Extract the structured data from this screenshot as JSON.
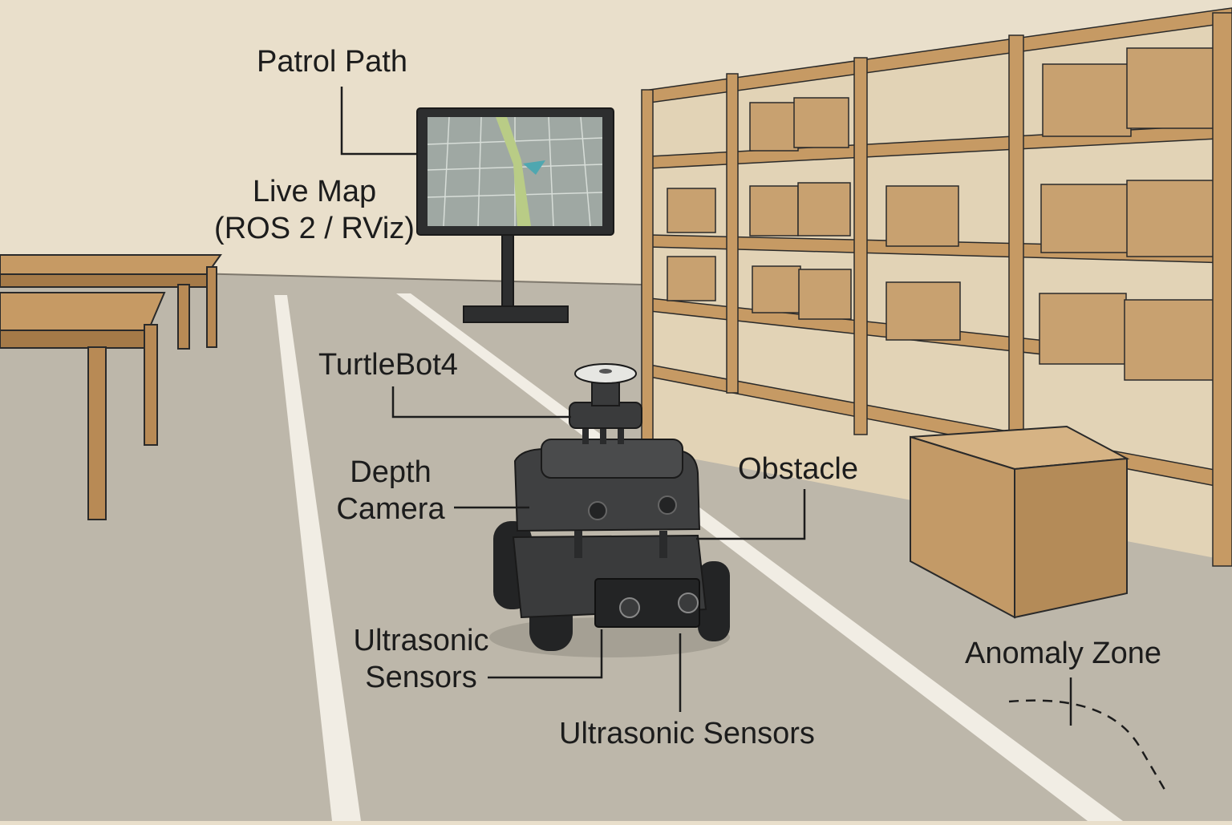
{
  "labels": {
    "patrol_path": "Patrol Path",
    "live_map_line1": "Live Map",
    "live_map_line2": "(ROS 2 / RViz)",
    "turtlebot": "TurtleBot4",
    "depth_line1": "Depth",
    "depth_line2": "Camera",
    "obstacle": "Obstacle",
    "ultrasonic_left_line1": "Ultrasonic",
    "ultrasonic_left_line2": "Sensors",
    "ultrasonic_bottom": "Ultrasonic Sensors",
    "anomaly_zone": "Anomaly Zone"
  },
  "colors": {
    "wall": "#e9dfcb",
    "floor": "#bdb7aa",
    "floor_line": "#f1ede4",
    "wood": "#c69a64",
    "wood_dark": "#9c7447",
    "box": "#c8a170",
    "robot": "#3a3b3c",
    "robot_dark": "#232425",
    "screen": "#9fa8a3",
    "path": "#b9cc86",
    "robot_marker": "#4fa7b0",
    "ink": "#1c1c1c"
  }
}
